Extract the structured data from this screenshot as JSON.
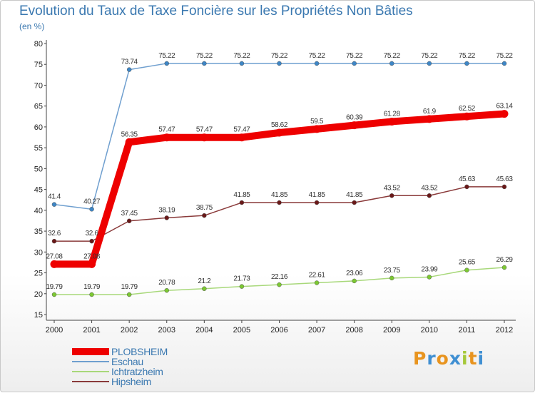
{
  "title": "Evolution du Taux de Taxe Foncière sur les Propriétés Non Bâties",
  "unit_label": "(en %)",
  "brand": {
    "text": "Proxiti",
    "letters": [
      "P",
      "r",
      "o",
      "x",
      "i",
      "t",
      "i"
    ],
    "colors": [
      "#e8941f",
      "#3f8fd2",
      "#e8941f",
      "#3f8fd2",
      "#a5c83a",
      "#e8941f",
      "#3f8fd2"
    ]
  },
  "chart_data": {
    "type": "line",
    "title": "Evolution du Taux de Taxe Foncière sur les Propriétés Non Bâties",
    "ylabel": "(en %)",
    "xlabel": "",
    "ylim": [
      15,
      80
    ],
    "yticks": [
      15,
      20,
      25,
      30,
      35,
      40,
      45,
      50,
      55,
      60,
      65,
      70,
      75,
      80
    ],
    "grid": false,
    "legend_position": "bottom-left",
    "x": [
      "2000",
      "2001",
      "2002",
      "2003",
      "2004",
      "2005",
      "2006",
      "2007",
      "2008",
      "2009",
      "2010",
      "2011",
      "2012"
    ],
    "series": [
      {
        "name": "PLOBSHEIM",
        "color": "#ee0000",
        "marker_color": "#ee0000",
        "highlight": true,
        "values": [
          27.08,
          27.08,
          56.35,
          57.47,
          57.47,
          57.47,
          58.62,
          59.5,
          60.39,
          61.28,
          61.9,
          62.52,
          63.14
        ],
        "labels": [
          "27.08",
          "27.08",
          "56.35",
          "57.47",
          "57.47",
          "57.47",
          "58.62",
          "59.5",
          "60.39",
          "61.28",
          "61.9",
          "62.52",
          "63.14"
        ]
      },
      {
        "name": "Eschau",
        "color": "#6f9fcf",
        "marker_color": "#3d86c6",
        "highlight": false,
        "values": [
          41.4,
          40.27,
          73.74,
          75.22,
          75.22,
          75.22,
          75.22,
          75.22,
          75.22,
          75.22,
          75.22,
          75.22,
          75.22
        ],
        "labels": [
          "41.4",
          "40.27",
          "73.74",
          "75.22",
          "75.22",
          "75.22",
          "75.22",
          "75.22",
          "75.22",
          "75.22",
          "75.22",
          "75.22",
          "75.22"
        ]
      },
      {
        "name": "Ichtratzheim",
        "color": "#a8d87a",
        "marker_color": "#7cc832",
        "highlight": false,
        "values": [
          19.79,
          19.79,
          19.79,
          20.78,
          21.2,
          21.73,
          22.16,
          22.61,
          23.06,
          23.75,
          23.99,
          25.65,
          26.29
        ],
        "labels": [
          "19.79",
          "19.79",
          "19.79",
          "20.78",
          "21.2",
          "21.73",
          "22.16",
          "22.61",
          "23.06",
          "23.75",
          "23.99",
          "25.65",
          "26.29"
        ]
      },
      {
        "name": "Hipsheim",
        "color": "#8a3a3a",
        "marker_color": "#6a1818",
        "highlight": false,
        "values": [
          32.6,
          32.6,
          37.45,
          38.19,
          38.75,
          41.85,
          41.85,
          41.85,
          41.85,
          43.52,
          43.52,
          45.63,
          45.63
        ],
        "labels": [
          "32.6",
          "32.6",
          "37.45",
          "38.19",
          "38.75",
          "41.85",
          "41.85",
          "41.85",
          "41.85",
          "43.52",
          "43.52",
          "45.63",
          "45.63"
        ]
      }
    ]
  }
}
